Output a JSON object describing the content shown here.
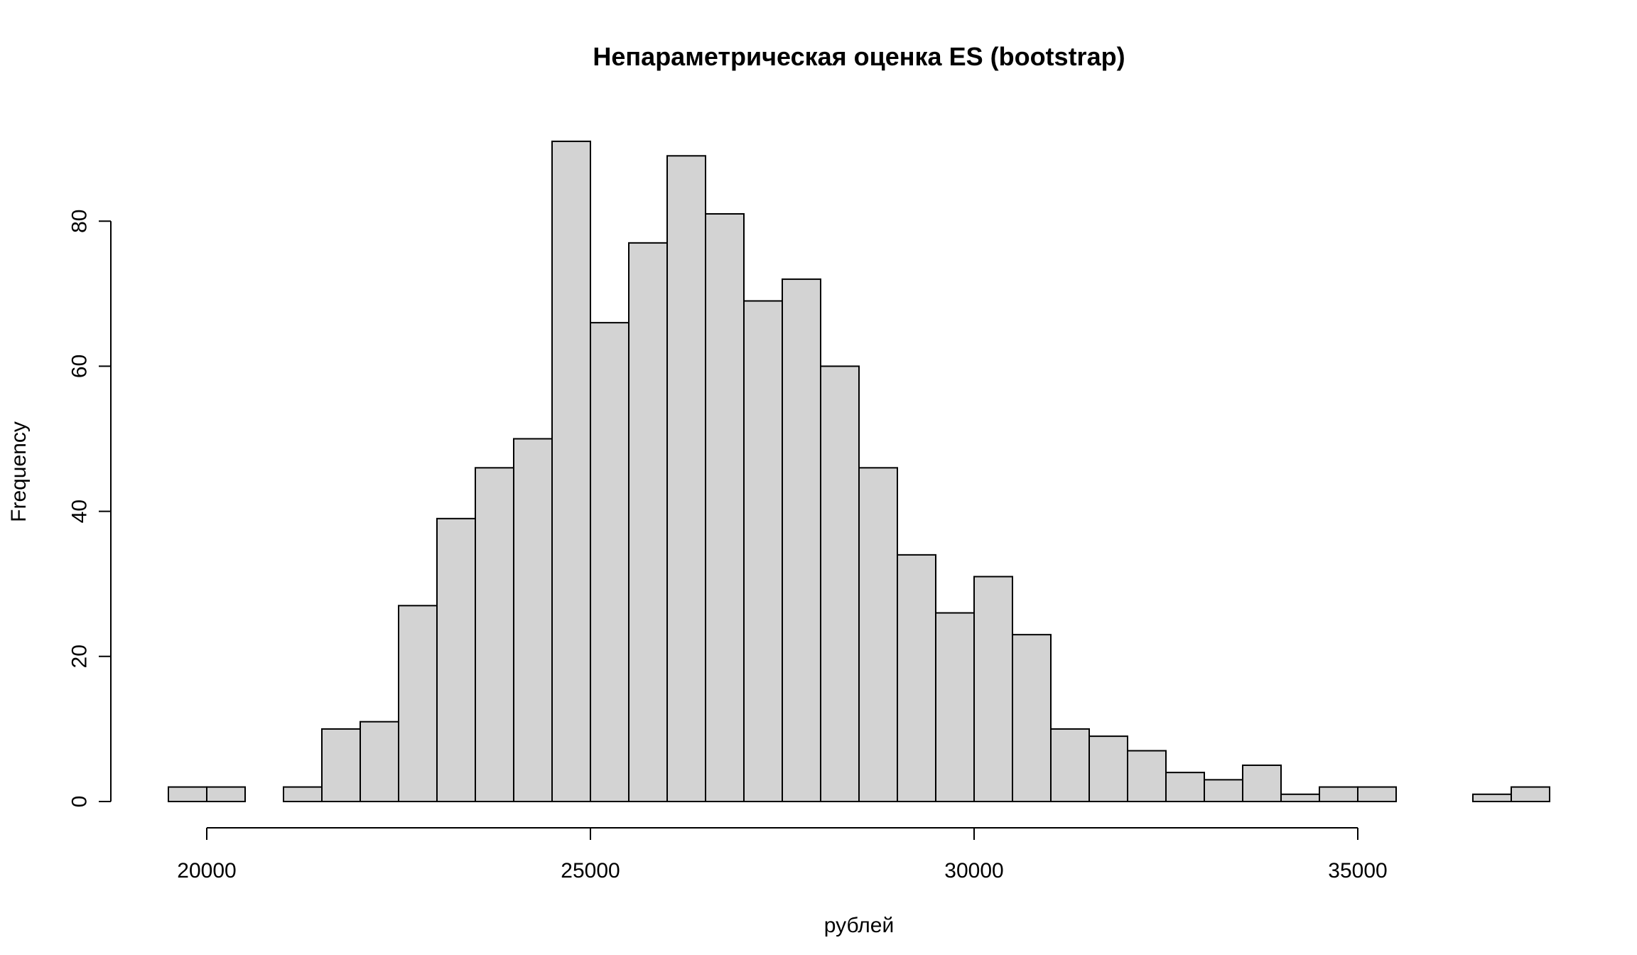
{
  "chart_data": {
    "type": "bar",
    "title": "Непараметрическая оценка ES (bootstrap)",
    "xlabel": "рублей",
    "ylabel": "Frequency",
    "bin_width": 500,
    "bins_start": [
      19500,
      20000,
      20500,
      21000,
      21500,
      22000,
      22500,
      23000,
      23500,
      24000,
      24500,
      25000,
      25500,
      26000,
      26500,
      27000,
      27500,
      28000,
      28500,
      29000,
      29500,
      30000,
      30500,
      31000,
      31500,
      32000,
      32500,
      33000,
      33500,
      34000,
      34500,
      35000,
      35500,
      36000,
      36500,
      37000
    ],
    "values": [
      2,
      2,
      0,
      2,
      10,
      11,
      27,
      39,
      46,
      50,
      91,
      66,
      77,
      89,
      81,
      69,
      72,
      60,
      46,
      34,
      26,
      31,
      23,
      10,
      9,
      7,
      4,
      3,
      5,
      1,
      2,
      2,
      0,
      0,
      1,
      2
    ],
    "xlim": [
      19500,
      37500
    ],
    "ylim": [
      0,
      91
    ],
    "x_ticks": [
      20000,
      25000,
      30000,
      35000
    ],
    "x_tick_labels": [
      "20000",
      "25000",
      "30000",
      "35000"
    ],
    "y_ticks": [
      0,
      20,
      40,
      60,
      80
    ],
    "y_tick_labels": [
      "0",
      "20",
      "40",
      "60",
      "80"
    ],
    "grid": false,
    "bar_color": "#d3d3d3",
    "edge_color": "#000000"
  }
}
